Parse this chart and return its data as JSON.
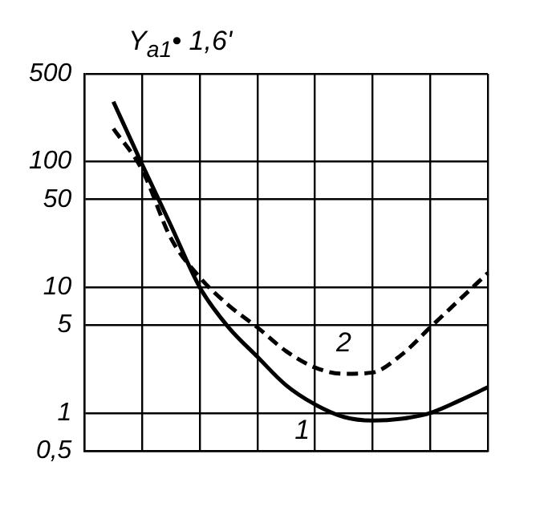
{
  "chart_data": {
    "type": "line",
    "ylabel": "Y$_{a1}$• 1,6'",
    "categories": [
      null,
      null,
      null,
      null,
      null,
      null,
      null,
      null,
      null,
      null,
      null,
      null,
      null,
      null,
      null
    ],
    "series": [
      {
        "name": "1",
        "color": "#000000",
        "line_style": "solid",
        "values": [
          null,
          300,
          95,
          31,
          10,
          4.8,
          2.8,
          1.66,
          1.17,
          0.93,
          0.87,
          0.9,
          1,
          1.25,
          1.6
        ]
      },
      {
        "name": "2",
        "color": "#000000",
        "line_style": "dashed",
        "values": [
          null,
          183,
          86,
          24.5,
          12,
          7.2,
          4.8,
          3.1,
          2.3,
          2.05,
          2.1,
          2.9,
          4.8,
          7.9,
          13
        ]
      }
    ],
    "log": "y",
    "ylim": [
      0.5,
      500
    ],
    "yticks": [
      {
        "value": 0.5,
        "label": "0,5"
      },
      1,
      5,
      10,
      50,
      100,
      500
    ],
    "grid": true,
    "legend": false,
    "tick_labels": "y",
    "marker": "none"
  }
}
